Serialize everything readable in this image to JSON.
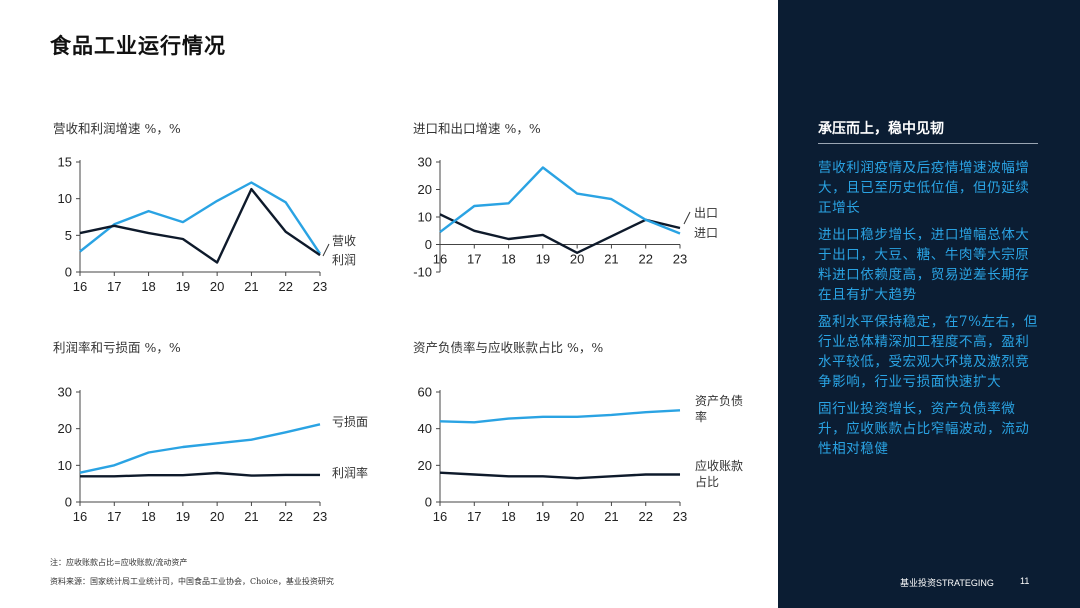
{
  "page": {
    "title": "食品工业运行情况"
  },
  "colors": {
    "cyan": "#2aa3e3",
    "navy": "#0e1a2b",
    "panel": "#0b1d33",
    "axis": "#444444"
  },
  "chart_data": [
    {
      "type": "line",
      "title": "营收和利润增速 %，%",
      "categories": [
        "16",
        "17",
        "18",
        "19",
        "20",
        "21",
        "22",
        "23"
      ],
      "ylim": [
        0,
        15
      ],
      "yticks": [
        0,
        5,
        10,
        15
      ],
      "series": [
        {
          "name": "营收",
          "color": "cyan",
          "values": [
            2.8,
            6.5,
            8.3,
            6.8,
            9.7,
            12.2,
            9.5,
            2.5
          ]
        },
        {
          "name": "利润",
          "color": "navy",
          "values": [
            5.3,
            6.3,
            5.3,
            4.5,
            1.3,
            11.3,
            5.5,
            2.3
          ]
        }
      ]
    },
    {
      "type": "line",
      "title": "进口和出口增速 %，%",
      "categories": [
        "16",
        "17",
        "18",
        "19",
        "20",
        "21",
        "22",
        "23"
      ],
      "ylim": [
        -10,
        30
      ],
      "yticks": [
        -10,
        0,
        10,
        20,
        30
      ],
      "series": [
        {
          "name": "出口",
          "color": "navy",
          "values": [
            11,
            5,
            2,
            3.5,
            -3,
            3,
            9,
            6
          ]
        },
        {
          "name": "进口",
          "color": "cyan",
          "values": [
            4.5,
            14,
            15,
            28,
            18.5,
            16.5,
            9,
            4
          ]
        }
      ]
    },
    {
      "type": "line",
      "title": "利润率和亏损面 %，%",
      "categories": [
        "16",
        "17",
        "18",
        "19",
        "20",
        "21",
        "22",
        "23"
      ],
      "ylim": [
        0,
        30
      ],
      "yticks": [
        0,
        10,
        20,
        30
      ],
      "series": [
        {
          "name": "亏损面",
          "color": "cyan",
          "values": [
            8,
            10,
            13.5,
            15,
            16,
            17,
            19,
            21.2
          ]
        },
        {
          "name": "利润率",
          "color": "navy",
          "values": [
            7,
            7,
            7.3,
            7.3,
            7.9,
            7.2,
            7.4,
            7.4
          ]
        }
      ]
    },
    {
      "type": "line",
      "title": "资产负债率与应收账款占比 %，%",
      "categories": [
        "16",
        "17",
        "18",
        "19",
        "20",
        "21",
        "22",
        "23"
      ],
      "ylim": [
        0,
        60
      ],
      "yticks": [
        0,
        20,
        40,
        60
      ],
      "series": [
        {
          "name": "资产负债率",
          "color": "cyan",
          "values": [
            44,
            43.5,
            45.5,
            46.5,
            46.5,
            47.5,
            49,
            50
          ]
        },
        {
          "name": "应收账款占比",
          "color": "navy",
          "values": [
            16,
            15,
            14,
            14,
            13,
            14,
            15,
            15
          ]
        }
      ]
    }
  ],
  "legend_labels": {
    "c1": {
      "a": "营收",
      "b": "利润"
    },
    "c2": {
      "a": "出口",
      "b": "进口"
    },
    "c3": {
      "a": "亏损面",
      "b": "利润率"
    },
    "c4": {
      "a1": "资产负债",
      "a2": "率",
      "b1": "应收账款",
      "b2": "占比"
    }
  },
  "notes": {
    "note": "注：应收账款占比=应收账款/流动资产",
    "source": "资料来源：国家统计局工业统计司，中国食品工业协会，Choice，基业投资研究"
  },
  "sidebar": {
    "heading": "承压而上，稳中见韧",
    "paragraphs": [
      "营收利润疫情及后疫情增速波幅增大，且已至历史低位值，但仍延续正增长",
      "进出口稳步增长，进口增幅总体大于出口，大豆、糖、牛肉等大宗原料进口依赖度高，贸易逆差长期存在且有扩大趋势",
      "盈利水平保持稳定，在7%左右，但行业总体精深加工程度不高，盈利水平较低，受宏观大环境及激烈竞争影响，行业亏损面快速扩大",
      "固行业投资增长，资产负债率微升，应收账款占比窄幅波动，流动性相对稳健"
    ]
  },
  "footer": {
    "brand": "基业投资STRATEGING",
    "page_number": "11"
  }
}
